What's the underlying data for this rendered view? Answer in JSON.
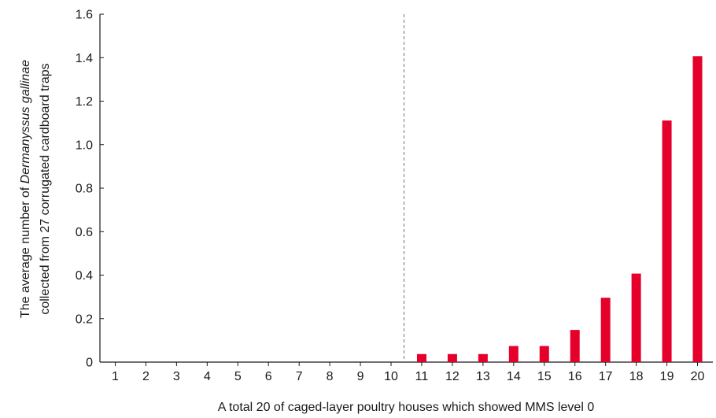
{
  "chart_data": {
    "type": "bar",
    "categories": [
      "1",
      "2",
      "3",
      "4",
      "5",
      "6",
      "7",
      "8",
      "9",
      "10",
      "11",
      "12",
      "13",
      "14",
      "15",
      "16",
      "17",
      "18",
      "19",
      "20"
    ],
    "values": [
      0,
      0,
      0,
      0,
      0,
      0,
      0,
      0,
      0,
      0,
      0.037,
      0.037,
      0.037,
      0.074,
      0.074,
      0.148,
      0.296,
      0.407,
      1.111,
      1.407
    ],
    "xlabel": "A total 20 of caged-layer poultry houses which showed MMS level 0",
    "ylabel_parts": [
      "The average number of ",
      "Dermanyssus gallinae",
      "collected from 27 corrugated cardboard traps"
    ],
    "ylim": [
      0,
      1.6
    ],
    "yticks": [
      0,
      0.2,
      0.4,
      0.6,
      0.8,
      1.0,
      1.2,
      1.4,
      1.6
    ],
    "ytick_labels": [
      "0",
      "0.2",
      "0.4",
      "0.6",
      "0.8",
      "1.0",
      "1.2",
      "1.4",
      "1.6"
    ],
    "divider_after_category": "10",
    "bar_color": "#e4002b",
    "divider_color": "#777777",
    "grid": false,
    "legend": "none"
  }
}
